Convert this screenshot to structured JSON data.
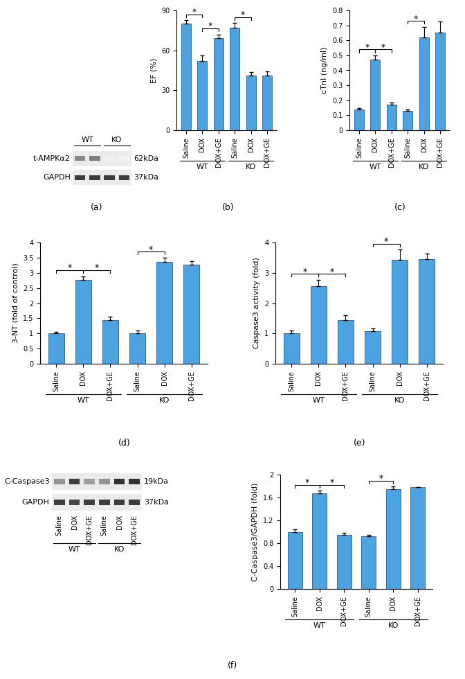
{
  "chart_data": [
    {
      "type": "bar",
      "panel": "(b)",
      "y_label": "EF (%)",
      "categories": [
        "Saline",
        "DOX",
        "DOX+GE",
        "Saline",
        "DOX",
        "DOX+GE"
      ],
      "groups": [
        {
          "label": "WT",
          "categories": [
            0,
            1,
            2
          ]
        },
        {
          "label": "KO",
          "categories": [
            3,
            4,
            5
          ]
        }
      ],
      "values": [
        80,
        52,
        69,
        77,
        41,
        41
      ],
      "errors": [
        2.5,
        4,
        3,
        3.5,
        2.5,
        3
      ],
      "color": "#4da3e0",
      "ylim": [
        0,
        90
      ],
      "yticks": [
        0,
        30,
        60,
        90
      ],
      "significance": {
        "label": "*",
        "pairs": [
          [
            0,
            1
          ],
          [
            1,
            2
          ],
          [
            3,
            4
          ]
        ]
      }
    },
    {
      "type": "bar",
      "panel": "(c)",
      "y_label": "cTnI (ng/ml)",
      "categories": [
        "Saline",
        "DOX",
        "DOX+GE",
        "Saline",
        "DOX",
        "DOX+GE"
      ],
      "groups": [
        {
          "label": "WT",
          "categories": [
            0,
            1,
            2
          ]
        },
        {
          "label": "KO",
          "categories": [
            3,
            4,
            5
          ]
        }
      ],
      "values": [
        0.14,
        0.47,
        0.17,
        0.13,
        0.62,
        0.65
      ],
      "errors": [
        0.01,
        0.03,
        0.015,
        0.01,
        0.07,
        0.075
      ],
      "color": "#4da3e0",
      "ylim": [
        0,
        0.8
      ],
      "yticks": [
        0,
        0.1,
        0.2,
        0.3,
        0.4,
        0.5,
        0.6,
        0.7,
        0.8
      ],
      "significance": {
        "label": "*",
        "pairs": [
          [
            0,
            1
          ],
          [
            1,
            2
          ],
          [
            3,
            4
          ]
        ]
      }
    },
    {
      "type": "bar",
      "panel": "(d)",
      "y_label": "3-NT (fold of control)",
      "categories": [
        "Saline",
        "DOX",
        "DOX+GE",
        "Saline",
        "DOX",
        "DOX+GE"
      ],
      "groups": [
        {
          "label": "WT",
          "categories": [
            0,
            1,
            2
          ]
        },
        {
          "label": "KO",
          "categories": [
            3,
            4,
            5
          ]
        }
      ],
      "values": [
        1.0,
        2.77,
        1.45,
        1.0,
        3.35,
        3.28
      ],
      "errors": [
        0.05,
        0.12,
        0.1,
        0.1,
        0.15,
        0.1
      ],
      "color": "#4da3e0",
      "ylim": [
        0,
        4
      ],
      "yticks": [
        0,
        0.5,
        1,
        1.5,
        2,
        2.5,
        3,
        3.5,
        4
      ],
      "significance": {
        "label": "*",
        "pairs": [
          [
            0,
            1
          ],
          [
            1,
            2
          ],
          [
            3,
            4
          ]
        ]
      }
    },
    {
      "type": "bar",
      "panel": "(e)",
      "y_label": "Caspase3 activity (fold)",
      "categories": [
        "Saline",
        "DOX",
        "DOX+GE",
        "Saline",
        "DOX",
        "DOX+GE"
      ],
      "groups": [
        {
          "label": "WT",
          "categories": [
            0,
            1,
            2
          ]
        },
        {
          "label": "KO",
          "categories": [
            3,
            4,
            5
          ]
        }
      ],
      "values": [
        1.0,
        2.55,
        1.45,
        1.08,
        3.43,
        3.45
      ],
      "errors": [
        0.1,
        0.22,
        0.15,
        0.08,
        0.33,
        0.18
      ],
      "color": "#4da3e0",
      "ylim": [
        0,
        4
      ],
      "yticks": [
        0,
        1,
        2,
        3,
        4
      ],
      "significance": {
        "label": "*",
        "pairs": [
          [
            0,
            1
          ],
          [
            1,
            2
          ],
          [
            3,
            4
          ]
        ]
      }
    },
    {
      "type": "bar",
      "y_label": "C-Caspase3/GAPDH (fold)",
      "categories": [
        "Saline",
        "DOX",
        "DOX+GE",
        "Saline",
        "DOX",
        "DOX+GE"
      ],
      "groups": [
        {
          "label": "WT",
          "categories": [
            0,
            1,
            2
          ]
        },
        {
          "label": "KO",
          "categories": [
            3,
            4,
            5
          ]
        }
      ],
      "values": [
        1.0,
        1.67,
        0.95,
        0.92,
        1.75,
        1.78
      ],
      "errors": [
        0.04,
        0.05,
        0.03,
        0.02,
        0.04,
        0
      ],
      "color": "#4da3e0",
      "ylim": [
        0,
        2
      ],
      "yticks": [
        0,
        0.4,
        0.8,
        1.2,
        1.6,
        2
      ],
      "significance": {
        "label": "*",
        "pairs": [
          [
            0,
            1
          ],
          [
            1,
            2
          ],
          [
            3,
            4
          ]
        ]
      }
    }
  ],
  "blots": [
    {
      "panel": "(a)",
      "lane_labels": [
        null,
        null,
        null,
        null
      ],
      "groups": [
        {
          "label": "WT",
          "lanes": [
            0,
            1
          ]
        },
        {
          "label": "KO",
          "lanes": [
            2,
            3
          ]
        }
      ],
      "rows": [
        {
          "label": "t-AMPKα2",
          "size": "62kDa"
        },
        {
          "label": "GAPDH",
          "size": "37kDa"
        }
      ]
    },
    {
      "panel": "(f)",
      "lane_labels": [
        "Saline",
        "DOX",
        "DOX+GE",
        "Saline",
        "DOX",
        "DOX+GE"
      ],
      "groups": [
        {
          "label": "WT",
          "lanes": [
            0,
            1,
            2
          ]
        },
        {
          "label": "KO",
          "lanes": [
            3,
            4,
            5
          ]
        }
      ],
      "rows": [
        {
          "label": "C-Caspase3",
          "size": "19kDa"
        },
        {
          "label": "GAPDH",
          "size": "37kDa"
        }
      ]
    }
  ]
}
